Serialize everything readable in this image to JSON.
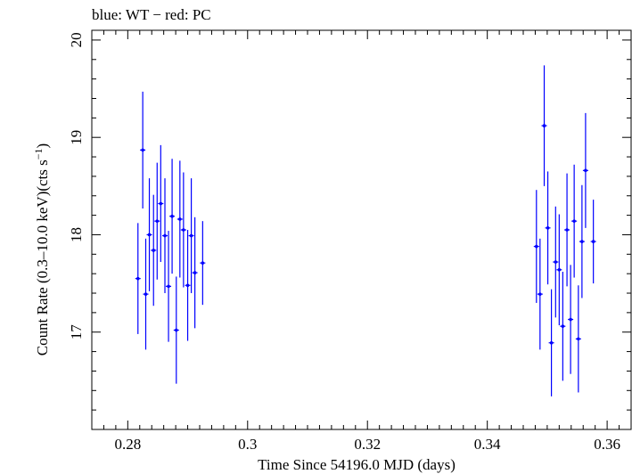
{
  "header": {
    "series_legend": "blue: WT − red: PC"
  },
  "colors": {
    "wt": "#0000ff",
    "axes": "#000000",
    "background": "#ffffff"
  },
  "chart_data": {
    "type": "scatter",
    "title": "blue: WT − red: PC",
    "xlabel": "Time Since 54196.0 MJD (days)",
    "ylabel_main": "Count Rate (0.3–10.0 keV)(cts s",
    "ylabel_sup": "−1",
    "ylabel_end": ")",
    "xlim": [
      0.274,
      0.364
    ],
    "ylim": [
      16.0,
      20.1
    ],
    "xticks": [
      0.28,
      0.3,
      0.32,
      0.34,
      0.36
    ],
    "xtick_labels": [
      "0.28",
      "0.3",
      "0.32",
      "0.34",
      "0.36"
    ],
    "yticks": [
      17,
      18,
      19,
      20
    ],
    "ytick_labels": [
      "17",
      "18",
      "19",
      "20"
    ],
    "grid": false,
    "series": [
      {
        "name": "WT",
        "color": "#0000ff",
        "points": [
          {
            "x": 0.2817,
            "y": 17.55,
            "yerr": 0.57
          },
          {
            "x": 0.2825,
            "y": 18.87,
            "yerr": 0.6
          },
          {
            "x": 0.283,
            "y": 17.39,
            "yerr": 0.57
          },
          {
            "x": 0.2836,
            "y": 18.0,
            "yerr": 0.58
          },
          {
            "x": 0.2843,
            "y": 17.84,
            "yerr": 0.57
          },
          {
            "x": 0.2849,
            "y": 18.14,
            "yerr": 0.6
          },
          {
            "x": 0.2855,
            "y": 18.32,
            "yerr": 0.6
          },
          {
            "x": 0.2862,
            "y": 17.99,
            "yerr": 0.59
          },
          {
            "x": 0.2868,
            "y": 17.47,
            "yerr": 0.57
          },
          {
            "x": 0.2874,
            "y": 18.19,
            "yerr": 0.59
          },
          {
            "x": 0.2881,
            "y": 17.02,
            "yerr": 0.55
          },
          {
            "x": 0.2887,
            "y": 18.16,
            "yerr": 0.6
          },
          {
            "x": 0.2893,
            "y": 18.05,
            "yerr": 0.59
          },
          {
            "x": 0.29,
            "y": 17.48,
            "yerr": 0.57
          },
          {
            "x": 0.2906,
            "y": 17.99,
            "yerr": 0.59
          },
          {
            "x": 0.2912,
            "y": 17.61,
            "yerr": 0.57
          },
          {
            "x": 0.2925,
            "y": 17.71,
            "yerr": 0.43
          },
          {
            "x": 0.3482,
            "y": 17.88,
            "yerr": 0.58
          },
          {
            "x": 0.3488,
            "y": 17.39,
            "yerr": 0.57
          },
          {
            "x": 0.3495,
            "y": 19.12,
            "yerr": 0.62
          },
          {
            "x": 0.3501,
            "y": 18.07,
            "yerr": 0.58
          },
          {
            "x": 0.3507,
            "y": 16.89,
            "yerr": 0.55
          },
          {
            "x": 0.3514,
            "y": 17.72,
            "yerr": 0.57
          },
          {
            "x": 0.352,
            "y": 17.64,
            "yerr": 0.57
          },
          {
            "x": 0.3526,
            "y": 17.06,
            "yerr": 0.56
          },
          {
            "x": 0.3533,
            "y": 18.05,
            "yerr": 0.58
          },
          {
            "x": 0.3539,
            "y": 17.13,
            "yerr": 0.56
          },
          {
            "x": 0.3545,
            "y": 18.14,
            "yerr": 0.58
          },
          {
            "x": 0.3552,
            "y": 16.93,
            "yerr": 0.55
          },
          {
            "x": 0.3558,
            "y": 17.93,
            "yerr": 0.58
          },
          {
            "x": 0.3564,
            "y": 18.66,
            "yerr": 0.59
          },
          {
            "x": 0.3577,
            "y": 17.93,
            "yerr": 0.43
          }
        ]
      }
    ]
  }
}
